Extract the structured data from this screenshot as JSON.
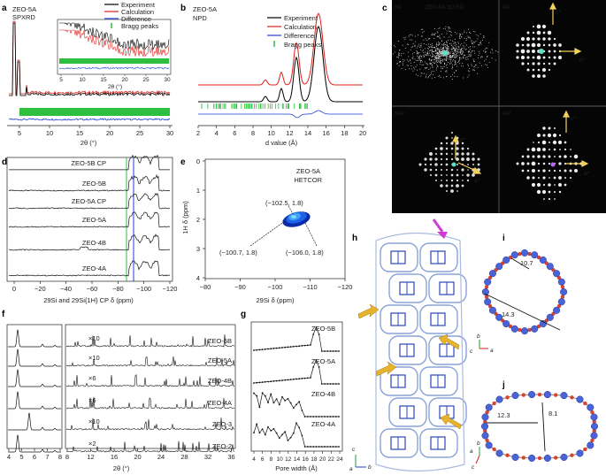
{
  "panel_a": {
    "letter": "a",
    "title_line1": "ZEO-5A",
    "title_line2": "SPXRD",
    "xlabel": "2θ (°)",
    "inset_xlabel": "2θ (°)",
    "legend": [
      "Experiment",
      "Calculation",
      "Difference",
      "Bragg peaks"
    ],
    "colors": {
      "experiment": "#000000",
      "calculation": "#e0201b",
      "difference": "#1f3fd8",
      "bragg": "#2fbf3f"
    }
  },
  "panel_b": {
    "letter": "b",
    "title_line1": "ZEO-5A",
    "title_line2": "NPD",
    "xlabel": "d value (Å)",
    "legend": [
      "Experiment",
      "Calculation",
      "Difference",
      "Bragg peaks"
    ]
  },
  "panel_c": {
    "letter": "c",
    "labels": [
      "hkl",
      "ZEO-5A 3D ED",
      "0kl",
      "hk0",
      "h0l"
    ],
    "axes": [
      "c*",
      "b*",
      "b*",
      "a*",
      "c*",
      "a*"
    ]
  },
  "panel_d": {
    "letter": "d",
    "traces": [
      "ZEO-5B CP",
      "ZEO-5B",
      "ZEO-5A CP",
      "ZEO-5A",
      "ZEO-4B",
      "ZEO-4A"
    ],
    "xlabel": "29Si and 29Si{1H} CP δ (ppm)"
  },
  "panel_e": {
    "letter": "e",
    "title_line1": "ZEO-5A",
    "title_line2": "HETCOR",
    "annotations": [
      "(−102.5, 1.8)",
      "(−100.7, 1.8)",
      "(−106.0, 1.8)"
    ],
    "xlabel": "29Si δ (ppm)",
    "ylabel": "1H δ (ppm)"
  },
  "panel_f": {
    "letter": "f",
    "traces": [
      "ZEO-5B",
      "ZEO-5A",
      "ZEO-4B",
      "ZEO-4A",
      "ZEO-3",
      "ZEO-2"
    ],
    "scales": [
      "×10",
      "×10",
      "×6",
      "×6",
      "×10",
      "×2"
    ],
    "xlabel": "2θ (°)"
  },
  "panel_g": {
    "letter": "g",
    "traces": [
      "ZEO-5B",
      "ZEO-5A",
      "ZEO-4B",
      "ZEO-4A"
    ],
    "xlabel": "Pore width (Å)"
  },
  "panel_h": {
    "letter": "h",
    "axes": [
      "c",
      "b",
      "a"
    ]
  },
  "panel_i": {
    "letter": "i",
    "dims": [
      "10.7",
      "14.3"
    ],
    "axes": [
      "b",
      "c",
      "a"
    ]
  },
  "panel_j": {
    "letter": "j",
    "dims": [
      "12.3",
      "8.1"
    ],
    "axes": [
      "b",
      "a",
      "c"
    ]
  }
}
